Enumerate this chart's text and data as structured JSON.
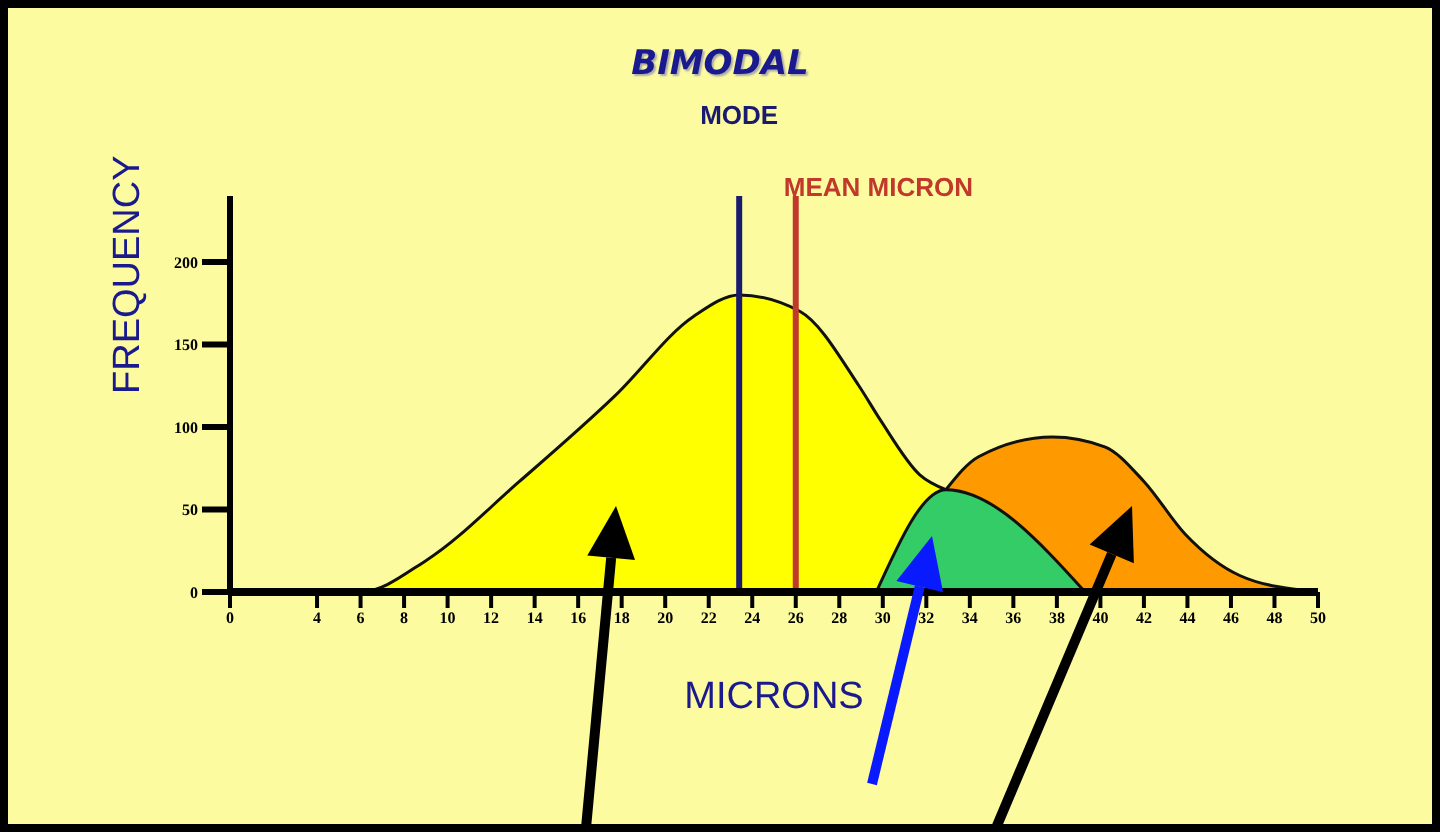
{
  "chart_data": {
    "type": "area",
    "title": "BIMODAL",
    "xlabel": "MICRONS",
    "ylabel": "FREQUENCY",
    "series": [
      {
        "color": "#ffff00",
        "x": [
          4,
          6,
          9,
          13.3,
          17.7,
          21.3,
          23.4,
          26.2,
          28.9,
          29.9,
          31.7,
          32.9
        ],
        "values": [
          0,
          0,
          19,
          67,
          119,
          167,
          180,
          170,
          125,
          104,
          71,
          62
        ]
      },
      {
        "color": "#ff9900",
        "x": [
          32.9,
          34.4,
          37.8,
          40.2,
          42,
          43.9,
          46.4,
          49.4
        ],
        "values": [
          62,
          82,
          94,
          88,
          67,
          35,
          10,
          1
        ]
      },
      {
        "color": "#33cc66",
        "x": [
          29.7,
          32.9,
          39.3
        ],
        "values": [
          0,
          62,
          0
        ]
      }
    ],
    "xlim": [
      0,
      50
    ],
    "xticks": [
      0,
      4,
      6,
      8,
      10,
      12,
      14,
      16,
      18,
      20,
      22,
      24,
      26,
      28,
      30,
      32,
      34,
      36,
      38,
      40,
      42,
      44,
      46,
      48,
      50
    ],
    "ylim": [
      0,
      240
    ],
    "yticks": [
      0,
      50,
      100,
      150,
      200
    ],
    "ref_lines": [
      {
        "axis": "x",
        "value": 23.4,
        "label": "MODE",
        "color": "#1a1a6e"
      },
      {
        "axis": "x",
        "value": 26,
        "label": "MEAN MICRON",
        "color": "#c0392b"
      }
    ],
    "grid": false,
    "legend": false,
    "marker": "none",
    "line_style": "solid"
  }
}
